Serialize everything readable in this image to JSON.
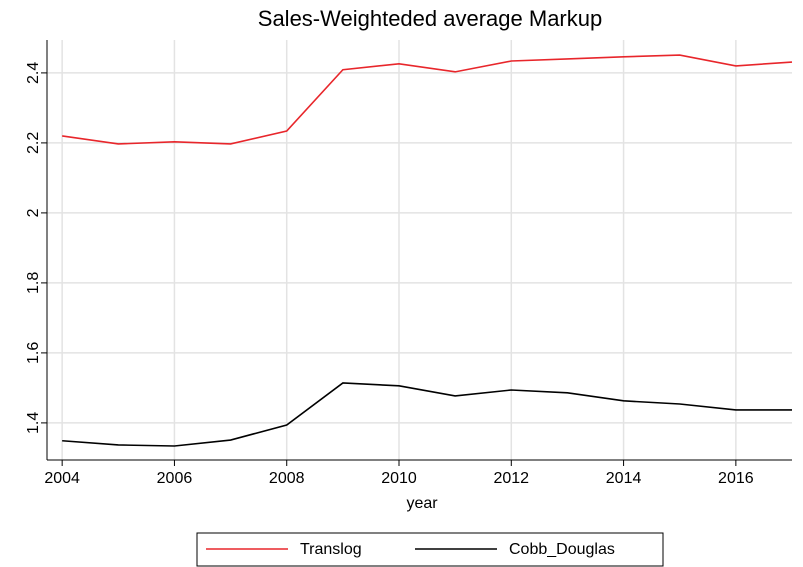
{
  "chart_data": {
    "type": "line",
    "title": "Sales-Weighteded average Markup",
    "x_label": "year",
    "x": [
      2004,
      2005,
      2006,
      2007,
      2008,
      2009,
      2010,
      2011,
      2012,
      2013,
      2014,
      2015,
      2016,
      2017
    ],
    "series": [
      {
        "name": "Translog",
        "color": "#e8262b",
        "values": [
          2.22,
          2.197,
          2.203,
          2.197,
          2.234,
          2.409,
          2.426,
          2.403,
          2.434,
          2.44,
          2.446,
          2.451,
          2.42,
          2.431
        ]
      },
      {
        "name": "Cobb_Douglas",
        "color": "#000000",
        "values": [
          1.349,
          1.337,
          1.334,
          1.351,
          1.394,
          1.514,
          1.506,
          1.477,
          1.494,
          1.486,
          1.463,
          1.454,
          1.437,
          1.437
        ]
      }
    ],
    "xlim": [
      2003.73,
      2017
    ],
    "xticks": [
      2004,
      2006,
      2008,
      2010,
      2012,
      2014,
      2016
    ],
    "ylim": [
      1.294,
      2.494
    ],
    "yticks": [
      1.4,
      1.6,
      1.8,
      2,
      2.2,
      2.4
    ],
    "grid": true,
    "legend": "bottom"
  }
}
